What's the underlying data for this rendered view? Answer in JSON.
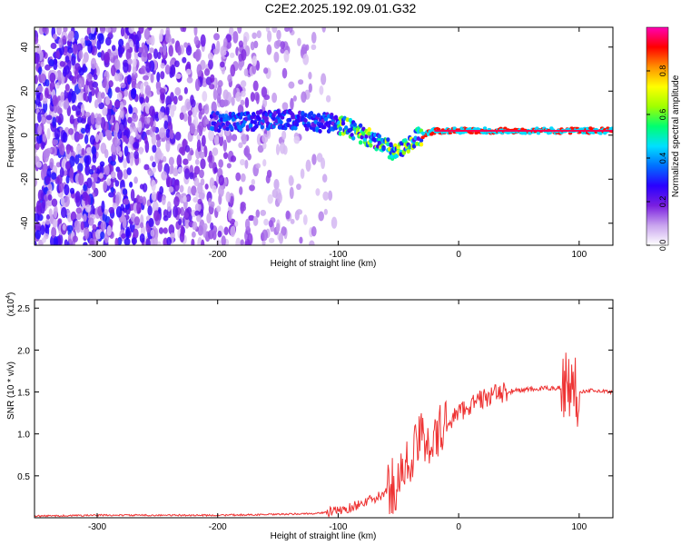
{
  "figure": {
    "title": "C2E2.2025.192.09.01.G32"
  },
  "chart_data": [
    {
      "type": "heatmap",
      "title": "C2E2.2025.192.09.01.G32",
      "xlabel": "Height of straight line (km)",
      "ylabel": "Frequency (Hz)",
      "xlim": [
        -352,
        128
      ],
      "ylim": [
        -50,
        49
      ],
      "xticks": [
        -300,
        -200,
        -100,
        0,
        100
      ],
      "yticks": [
        -40,
        -20,
        0,
        20,
        40
      ],
      "grid": false,
      "colorbar": {
        "label": "Normalized spectral amplitude",
        "range": [
          0,
          1
        ],
        "ticks": [
          0.0,
          0.2,
          0.4,
          0.6,
          0.8
        ],
        "colors": [
          "#ffffff",
          "#c9a4ee",
          "#7a1fe0",
          "#2a00ff",
          "#0070ff",
          "#00e0ff",
          "#00ff70",
          "#a0ff00",
          "#ffff00",
          "#ff9000",
          "#ff0000",
          "#ff00b4"
        ]
      },
      "ridge": [
        {
          "x": -200,
          "y": 6
        },
        {
          "x": -180,
          "y": 6
        },
        {
          "x": -160,
          "y": 7
        },
        {
          "x": -140,
          "y": 7
        },
        {
          "x": -120,
          "y": 6
        },
        {
          "x": -100,
          "y": 5
        },
        {
          "x": -90,
          "y": 3
        },
        {
          "x": -80,
          "y": 0
        },
        {
          "x": -70,
          "y": -2
        },
        {
          "x": -60,
          "y": -5
        },
        {
          "x": -55,
          "y": -7
        },
        {
          "x": -50,
          "y": -6
        },
        {
          "x": -40,
          "y": -3
        },
        {
          "x": -30,
          "y": 0
        },
        {
          "x": -20,
          "y": 2
        },
        {
          "x": -10,
          "y": 2
        },
        {
          "x": 0,
          "y": 2
        },
        {
          "x": 20,
          "y": 2
        },
        {
          "x": 60,
          "y": 2
        },
        {
          "x": 100,
          "y": 2
        },
        {
          "x": 128,
          "y": 2
        }
      ]
    },
    {
      "type": "line",
      "xlabel": "Height of straight line (km)",
      "ylabel": "SNR (10 * v/v)",
      "scale_label": "(x10",
      "scale_exponent": "4",
      "scale_suffix": ")",
      "xlim": [
        -352,
        128
      ],
      "ylim": [
        0,
        2.6
      ],
      "xticks": [
        -300,
        -200,
        -100,
        0,
        100
      ],
      "yticks": [
        0.5,
        1.0,
        1.5,
        2.0,
        2.5
      ],
      "grid": false,
      "series": [
        {
          "color": "#ee3333",
          "x": [
            -352,
            -300,
            -250,
            -200,
            -150,
            -120,
            -100,
            -90,
            -80,
            -70,
            -60,
            -50,
            -45,
            -40,
            -35,
            -30,
            -25,
            -20,
            -15,
            -10,
            -5,
            0,
            10,
            20,
            30,
            40,
            50,
            60,
            70,
            80,
            85,
            90,
            95,
            100,
            110,
            128
          ],
          "y": [
            0.02,
            0.03,
            0.03,
            0.03,
            0.04,
            0.05,
            0.08,
            0.12,
            0.18,
            0.22,
            0.3,
            0.45,
            0.55,
            0.7,
            0.85,
            0.95,
            1.0,
            0.85,
            1.05,
            1.1,
            1.2,
            1.25,
            1.35,
            1.42,
            1.47,
            1.5,
            1.52,
            1.53,
            1.54,
            1.55,
            1.55,
            1.6,
            1.55,
            1.5,
            1.52,
            1.5
          ]
        }
      ]
    }
  ]
}
